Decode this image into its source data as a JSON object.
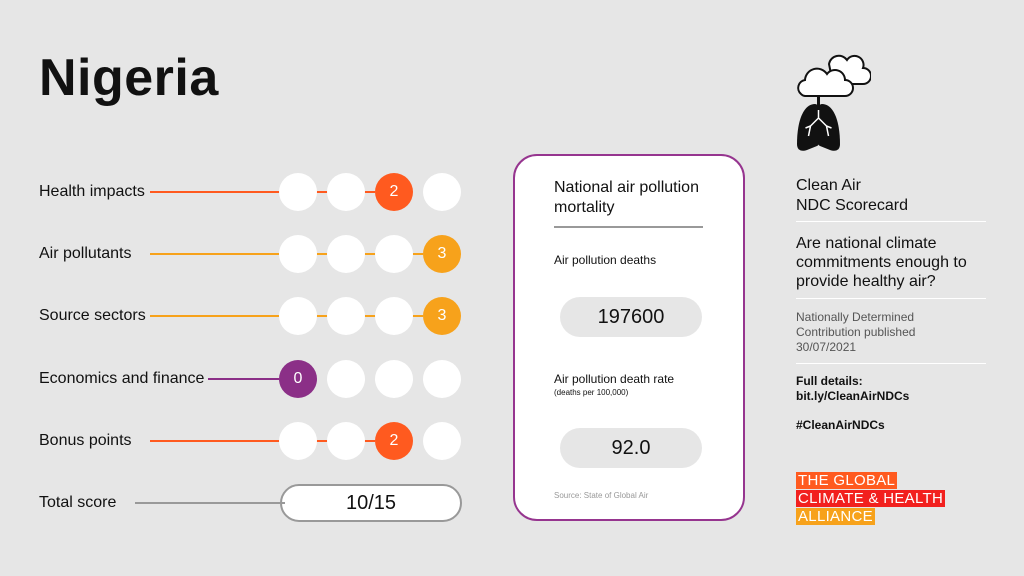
{
  "country": "Nigeria",
  "colors": {
    "health": "#ff5a1f",
    "orange": "#f7a21b",
    "purple": "#8b2f87",
    "card_border": "#96358f"
  },
  "categories": [
    {
      "label": "Health impacts",
      "score": "2",
      "position": 3,
      "color": "#ff5a1f"
    },
    {
      "label": "Air pollutants",
      "score": "3",
      "position": 4,
      "color": "#f7a21b"
    },
    {
      "label": "Source sectors",
      "score": "3",
      "position": 4,
      "color": "#f7a21b"
    },
    {
      "label": "Economics and finance",
      "score": "0",
      "position": 1,
      "color": "#8b2f87"
    },
    {
      "label": "Bonus points",
      "score": "2",
      "position": 3,
      "color": "#ff5a1f"
    }
  ],
  "total": {
    "label": "Total score",
    "value": "10/15"
  },
  "card": {
    "title": "National air pollution mortality",
    "deaths_label": "Air pollution deaths",
    "deaths_value": "197600",
    "rate_label": "Air pollution death rate",
    "rate_unit": "(deaths per 100,000)",
    "rate_value": "92.0",
    "source": "Source: State of Global Air"
  },
  "side": {
    "icon": "cloud-lungs-icon",
    "heading_1": "Clean Air",
    "heading_2": "NDC Scorecard",
    "question": "Are national climate commitments enough to provide healthy air?",
    "ndc_1": "Nationally Determined",
    "ndc_2": "Contribution published",
    "ndc_date": "30/07/2021",
    "details_label": "Full details:",
    "details_link": "bit.ly/CleanAirNDCs",
    "hashtag": "#CleanAirNDCs",
    "logo": [
      "THE GLOBAL",
      "CLIMATE & HEALTH",
      "ALLIANCE"
    ]
  }
}
